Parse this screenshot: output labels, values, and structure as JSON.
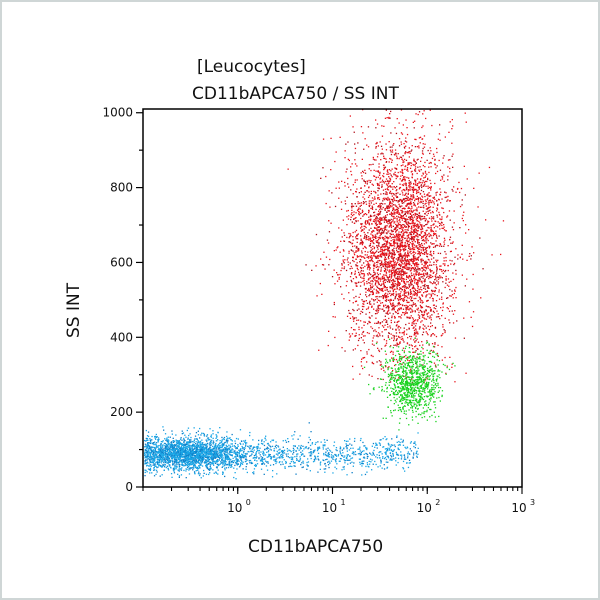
{
  "chart_data": {
    "type": "scatter",
    "title": "[Leucocytes]",
    "subtitle": "CD11bAPCA750 / SS INT",
    "xlabel": "CD11bAPCA750",
    "ylabel": "SS INT",
    "xscale": "log",
    "xlim": [
      0.1,
      1000
    ],
    "ylim": [
      0,
      1010
    ],
    "x_ticks": [
      {
        "value": 1,
        "label": "10",
        "exp": "0"
      },
      {
        "value": 10,
        "label": "10",
        "exp": "1"
      },
      {
        "value": 100,
        "label": "10",
        "exp": "2"
      },
      {
        "value": 1000,
        "label": "10",
        "exp": "3"
      }
    ],
    "y_ticks": [
      0,
      200,
      400,
      600,
      800,
      1000
    ],
    "grid": false,
    "legend": "none",
    "series": [
      {
        "color": "#e8141c",
        "x_center": 50,
        "x_log_sd": 0.28,
        "y_center": 640,
        "y_sd": 150,
        "y_range": [
          280,
          1010
        ]
      },
      {
        "color": "#19d21e",
        "x_center": 70,
        "x_log_sd": 0.15,
        "y_center": 280,
        "y_sd": 45,
        "y_range": [
          150,
          420
        ]
      },
      {
        "color": "#1aa6e6",
        "x_center": 0.3,
        "x_log_sd": 0.45,
        "x_range": [
          0.1,
          80
        ],
        "y_center": 90,
        "y_sd": 22,
        "y_range": [
          20,
          180
        ]
      }
    ]
  }
}
